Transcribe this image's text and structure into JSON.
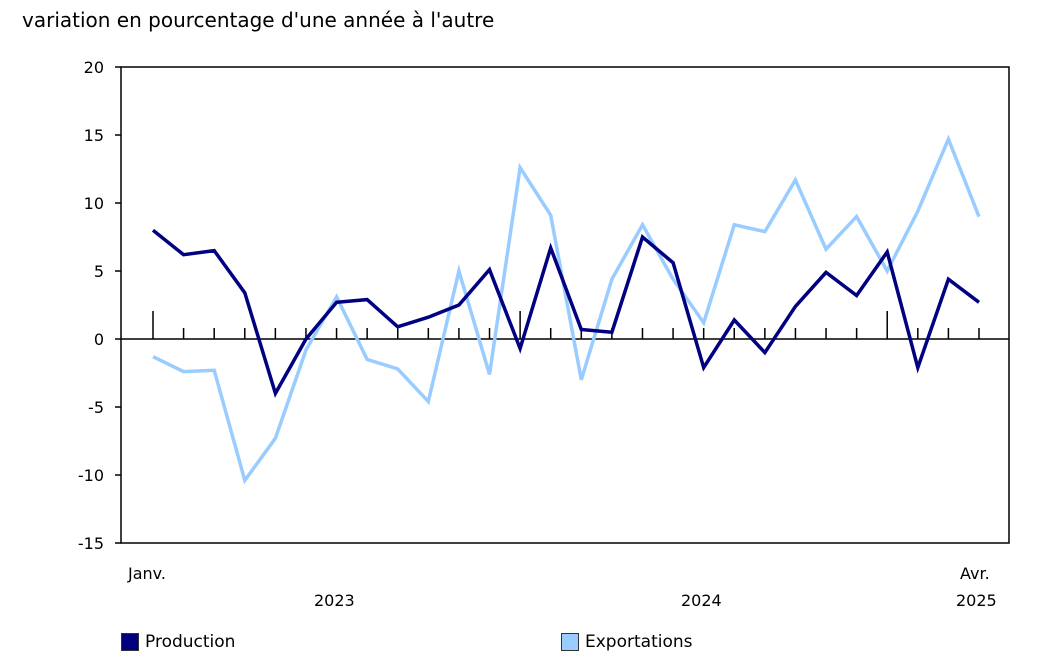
{
  "chart_data": {
    "type": "line",
    "title": "",
    "ylabel": "variation en pourcentage d'une année à l'autre",
    "xlabel": "",
    "ylim": [
      -15,
      20
    ],
    "yticks": [
      20,
      15,
      10,
      5,
      0,
      -5,
      -10,
      -15
    ],
    "grid": false,
    "legend_position": "bottom",
    "x": [
      "2023-01",
      "2023-02",
      "2023-03",
      "2023-04",
      "2023-05",
      "2023-06",
      "2023-07",
      "2023-08",
      "2023-09",
      "2023-10",
      "2023-11",
      "2023-12",
      "2024-01",
      "2024-02",
      "2024-03",
      "2024-04",
      "2024-05",
      "2024-06",
      "2024-07",
      "2024-08",
      "2024-09",
      "2024-10",
      "2024-11",
      "2024-12",
      "2025-01",
      "2025-02",
      "2025-03",
      "2025-04"
    ],
    "x_tick_labels": {
      "first": "Janv.",
      "last": "Avr.",
      "years": [
        "2023",
        "2024",
        "2025"
      ]
    },
    "series": [
      {
        "name": "Production",
        "color": "#000080",
        "values": [
          8.0,
          6.2,
          6.5,
          3.4,
          -4.0,
          0.0,
          2.7,
          2.9,
          0.9,
          1.6,
          2.5,
          5.1,
          -0.7,
          6.7,
          0.7,
          0.5,
          7.5,
          5.6,
          -2.1,
          1.4,
          -1.0,
          2.4,
          4.9,
          3.2,
          6.4,
          -2.1,
          4.4,
          2.7
        ]
      },
      {
        "name": "Exportations",
        "color": "#99ccff",
        "values": [
          -1.3,
          -2.4,
          -2.3,
          -10.4,
          -7.3,
          -0.8,
          3.1,
          -1.5,
          -2.2,
          -4.6,
          5.0,
          -2.6,
          12.6,
          9.1,
          -3.0,
          4.4,
          8.4,
          4.4,
          1.2,
          8.4,
          7.9,
          11.7,
          6.6,
          9.0,
          5.0,
          9.4,
          14.7,
          9.0
        ]
      }
    ]
  },
  "header": {
    "title": "variation en pourcentage d'une année à l'autre"
  },
  "axis": {
    "y_labels": [
      "20",
      "15",
      "10",
      "5",
      "0",
      "-5",
      "-10",
      "-15"
    ],
    "x_first": "Janv.",
    "x_last": "Avr.",
    "years": [
      "2023",
      "2024",
      "2025"
    ]
  },
  "legend": [
    {
      "label": "Production",
      "color": "#000080"
    },
    {
      "label": "Exportations",
      "color": "#99ccff"
    }
  ]
}
